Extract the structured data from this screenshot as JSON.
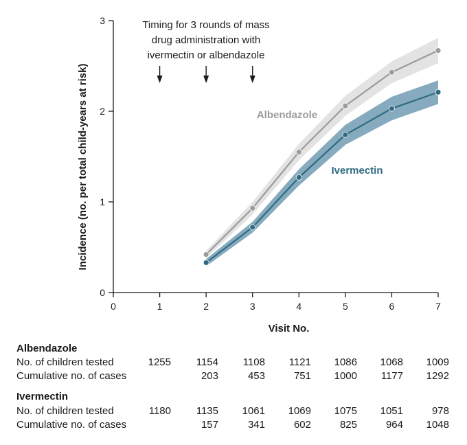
{
  "chart_data": {
    "type": "line",
    "xlabel": "Visit No.",
    "ylabel": "Incidence (no. per total child-years at risk)",
    "xlim": [
      0,
      7
    ],
    "ylim": [
      0,
      3
    ],
    "x_ticks": [
      0,
      1,
      2,
      3,
      4,
      5,
      6,
      7
    ],
    "y_ticks": [
      0,
      1,
      2,
      3
    ],
    "grid": false,
    "annotation": {
      "lines": [
        "Timing for 3 rounds of mass",
        "drug administration with",
        "ivermectin or albendazole"
      ],
      "arrow_visits": [
        1,
        2,
        3
      ]
    },
    "series": [
      {
        "name": "Albendazole",
        "color": "#9b9b9b",
        "band_color": "#e3e3e3",
        "x": [
          2,
          3,
          4,
          5,
          6,
          7
        ],
        "y": [
          0.42,
          0.93,
          1.55,
          2.06,
          2.43,
          2.67
        ],
        "ci_lower": [
          0.38,
          0.86,
          1.46,
          1.95,
          2.31,
          2.53
        ],
        "ci_upper": [
          0.46,
          1.0,
          1.64,
          2.17,
          2.55,
          2.81
        ]
      },
      {
        "name": "Ivermectin",
        "color": "#2f6a82",
        "band_color": "#86abbe",
        "x": [
          2,
          3,
          4,
          5,
          6,
          7
        ],
        "y": [
          0.33,
          0.72,
          1.27,
          1.74,
          2.03,
          2.21
        ],
        "ci_lower": [
          0.29,
          0.66,
          1.18,
          1.63,
          1.9,
          2.08
        ],
        "ci_upper": [
          0.37,
          0.78,
          1.36,
          1.85,
          2.16,
          2.34
        ]
      }
    ]
  },
  "table": {
    "groups": [
      {
        "name": "Albendazole",
        "rows": [
          {
            "label": "No. of children tested",
            "values": [
              "1255",
              "1154",
              "1108",
              "1121",
              "1086",
              "1068",
              "1009"
            ]
          },
          {
            "label": "Cumulative no. of cases",
            "values": [
              "",
              "203",
              "453",
              "751",
              "1000",
              "1177",
              "1292"
            ]
          }
        ]
      },
      {
        "name": "Ivermectin",
        "rows": [
          {
            "label": "No. of children tested",
            "values": [
              "1180",
              "1135",
              "1061",
              "1069",
              "1075",
              "1051",
              "978"
            ]
          },
          {
            "label": "Cumulative no. of cases",
            "values": [
              "",
              "157",
              "341",
              "602",
              "825",
              "964",
              "1048"
            ]
          }
        ]
      }
    ]
  }
}
